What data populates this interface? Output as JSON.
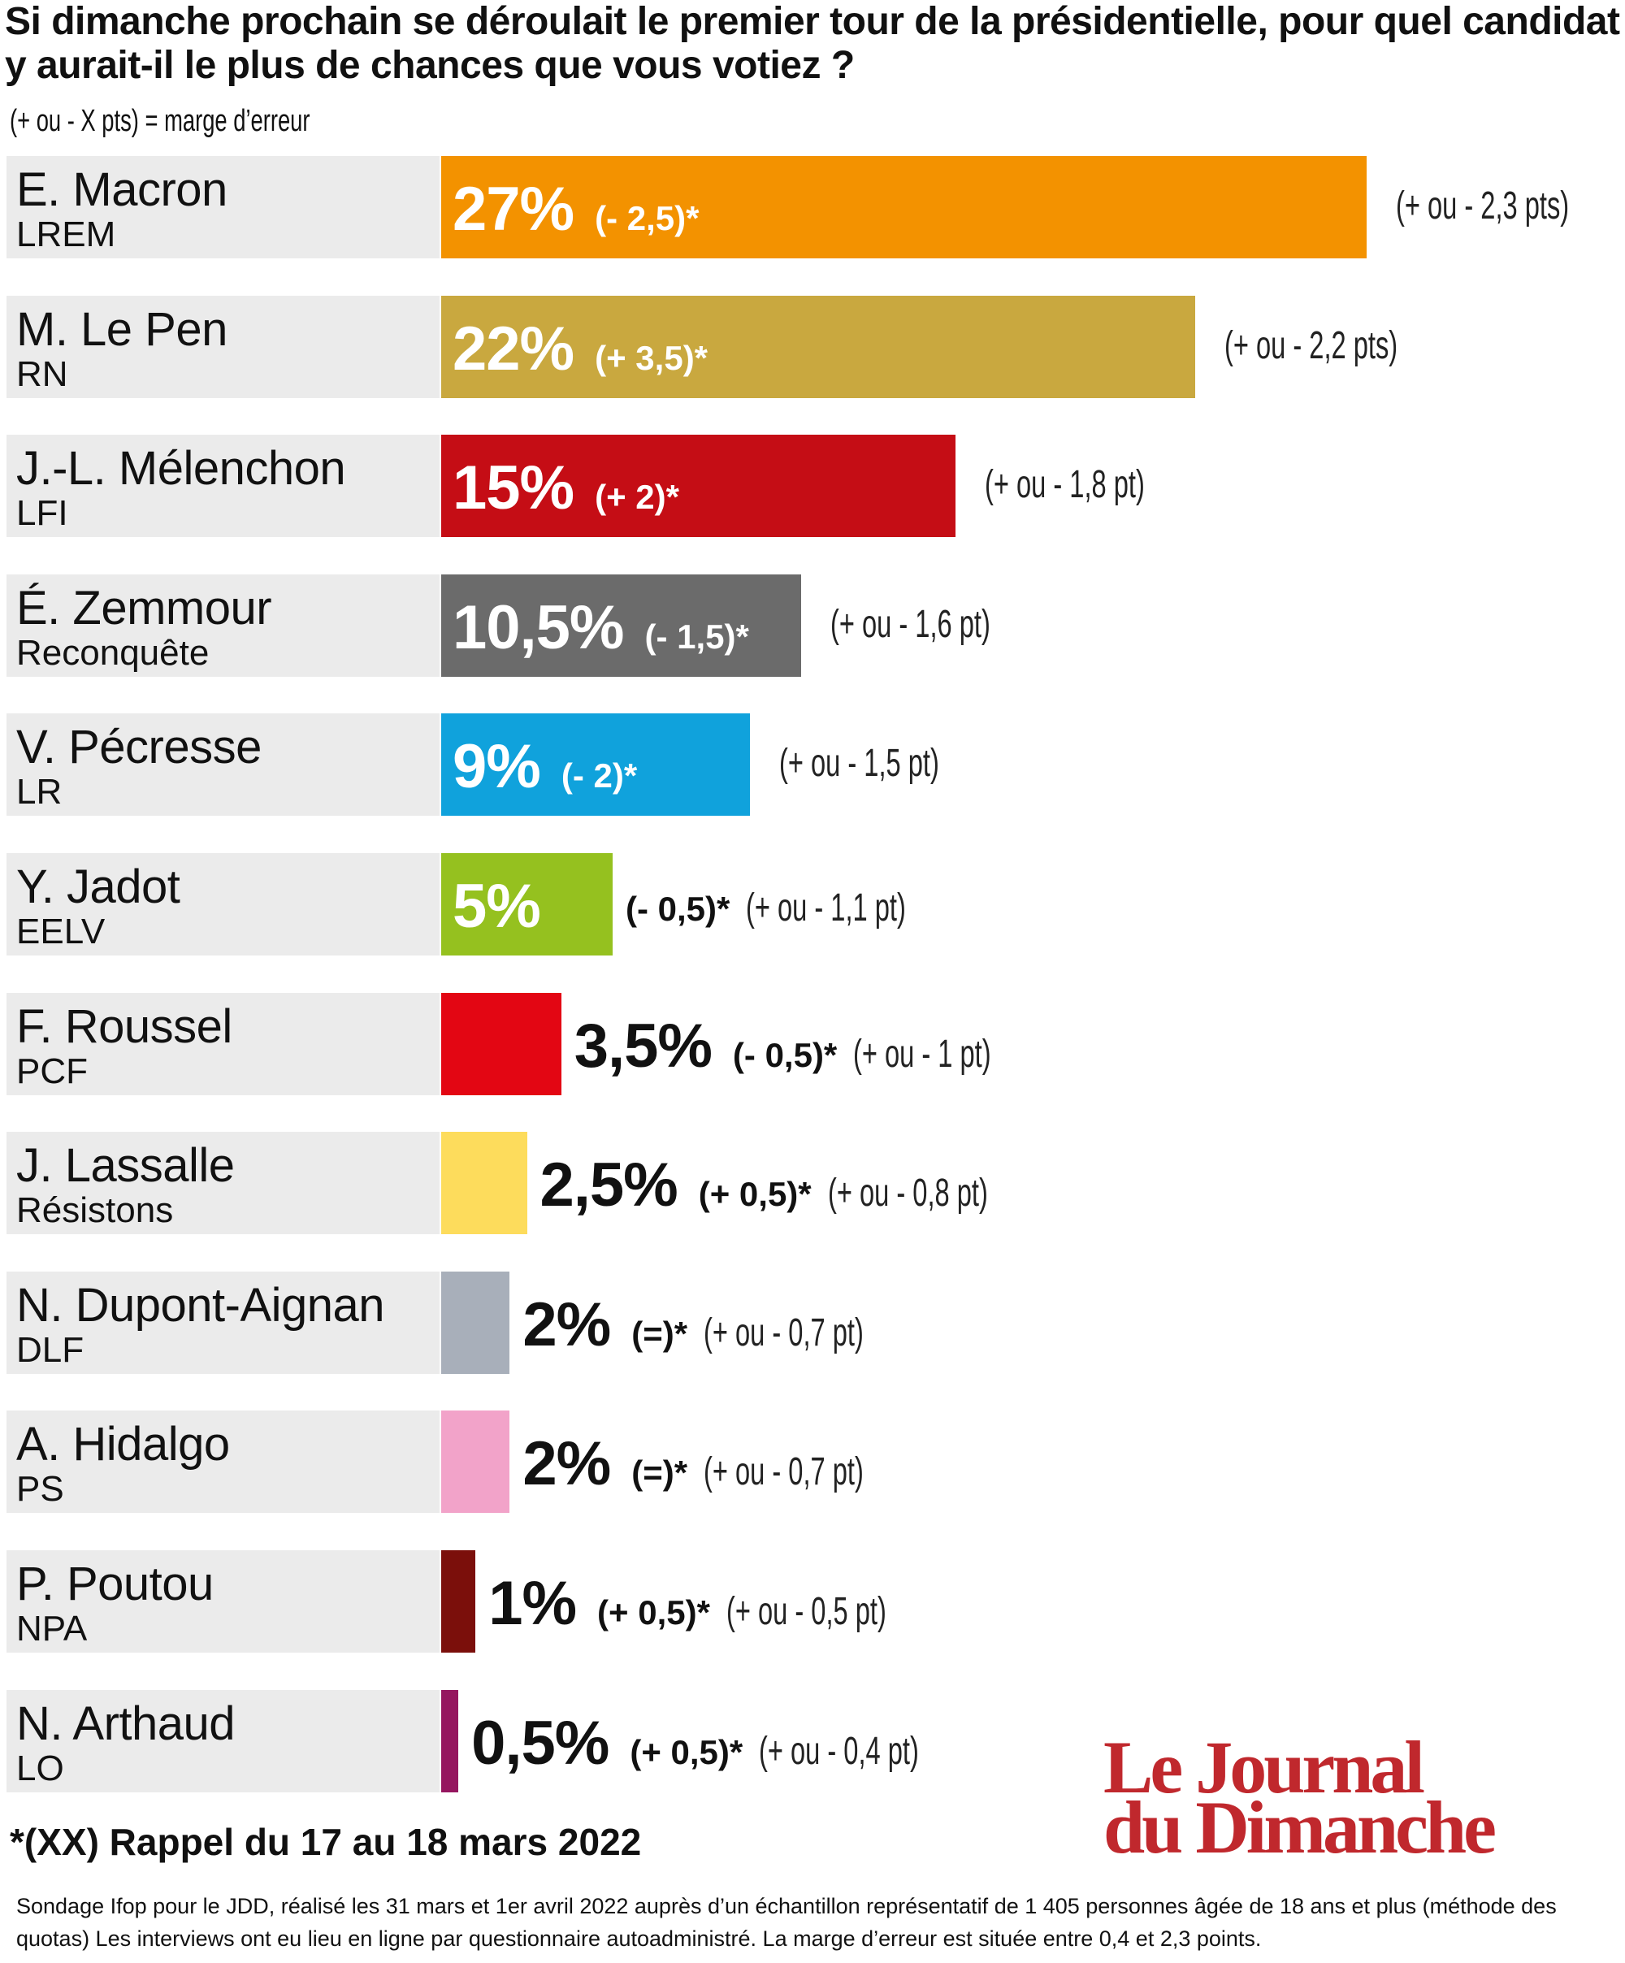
{
  "header": {
    "title": "Si dimanche prochain se déroulait le premier tour de la présidentielle, pour quel candidat y aurait-il le plus de chances que vous votiez ?",
    "subtitle": "(+ ou - X pts) = marge d’erreur"
  },
  "chart_data": {
    "type": "bar",
    "orientation": "horizontal",
    "title": "Si dimanche prochain se déroulait le premier tour de la présidentielle, pour quel candidat y aurait-il le plus de chances que vous votiez ?",
    "unit": "%",
    "items": [
      {
        "name": "E. Macron",
        "party": "LREM",
        "value": 27,
        "value_label": "27%",
        "change": "(- 2,5)*",
        "margin": "(+ ou - 2,3 pts)",
        "color": "#f39200"
      },
      {
        "name": "M. Le Pen",
        "party": "RN",
        "value": 22,
        "value_label": "22%",
        "change": "(+ 3,5)*",
        "margin": "(+ ou - 2,2 pts)",
        "color": "#c9a83f"
      },
      {
        "name": "J.-L. Mélenchon",
        "party": "LFI",
        "value": 15,
        "value_label": "15%",
        "change": "(+ 2)*",
        "margin": "(+ ou - 1,8 pt)",
        "color": "#c50d15"
      },
      {
        "name": "É. Zemmour",
        "party": "Reconquête",
        "value": 10.5,
        "value_label": "10,5%",
        "change": "(- 1,5)*",
        "margin": "(+ ou - 1,6 pt)",
        "color": "#6b6b6b"
      },
      {
        "name": "V. Pécresse",
        "party": "LR",
        "value": 9,
        "value_label": "9%",
        "change": "(- 2)*",
        "margin": "(+ ou - 1,5 pt)",
        "color": "#10a2dc"
      },
      {
        "name": "Y. Jadot",
        "party": "EELV",
        "value": 5,
        "value_label": "5%",
        "change": "(- 0,5)*",
        "margin": "(+ ou - 1,1 pt)",
        "color": "#95c11f"
      },
      {
        "name": "F. Roussel",
        "party": "PCF",
        "value": 3.5,
        "value_label": "3,5%",
        "change": "(- 0,5)*",
        "margin": "(+ ou - 1 pt)",
        "color": "#e30613"
      },
      {
        "name": "J. Lassalle",
        "party": "Résistons",
        "value": 2.5,
        "value_label": "2,5%",
        "change": "(+ 0,5)*",
        "margin": "(+ ou - 0,8 pt)",
        "color": "#fddc5c"
      },
      {
        "name": "N. Dupont-Aignan",
        "party": "DLF",
        "value": 2,
        "value_label": "2%",
        "change": "(=)*",
        "margin": "(+ ou - 0,7 pt)",
        "color": "#a8afba"
      },
      {
        "name": "A. Hidalgo",
        "party": "PS",
        "value": 2,
        "value_label": "2%",
        "change": "(=)*",
        "margin": "(+ ou - 0,7 pt)",
        "color": "#f2a3c9"
      },
      {
        "name": "P. Poutou",
        "party": "NPA",
        "value": 1,
        "value_label": "1%",
        "change": "(+ 0,5)*",
        "margin": "(+ ou - 0,5 pt)",
        "color": "#7b0f0b"
      },
      {
        "name": "N. Arthaud",
        "party": "LO",
        "value": 0.5,
        "value_label": "0,5%",
        "change": "(+ 0,5)*",
        "margin": "(+ ou - 0,4 pt)",
        "color": "#95165f"
      }
    ]
  },
  "footer": {
    "rappel": "*(XX) Rappel du 17 au 18 mars 2022",
    "logo_line1": "Le Journal",
    "logo_line2": "du Dimanche",
    "source": "Sondage Ifop pour le JDD, réalisé les 31 mars et 1er avril 2022 auprès d’un échantillon représentatif de 1 405 personnes âgée de 18 ans et plus (méthode des quotas) Les interviews ont eu lieu en ligne par questionnaire autoadministré. La marge d’erreur est située entre 0,4 et 2,3 points."
  }
}
